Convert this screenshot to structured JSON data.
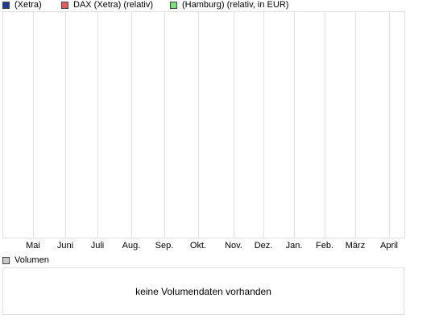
{
  "legend": [
    {
      "label": "(Xetra)",
      "color": "#1f3a93"
    },
    {
      "label": "DAX (Xetra) (relativ)",
      "color": "#e05b5b"
    },
    {
      "label": "(Hamburg) (relativ, in EUR)",
      "color": "#7ae07a"
    }
  ],
  "chart_data": {
    "type": "line",
    "x": [
      "Mai",
      "Juni",
      "Juli",
      "Aug.",
      "Sep.",
      "Okt.",
      "Nov.",
      "Dez.",
      "Jan.",
      "Feb.",
      "März",
      "April"
    ],
    "series": [],
    "grid": true
  },
  "volume": {
    "label": "Volumen",
    "color": "#c8c8c8",
    "message": "keine Volumendaten vorhanden"
  }
}
